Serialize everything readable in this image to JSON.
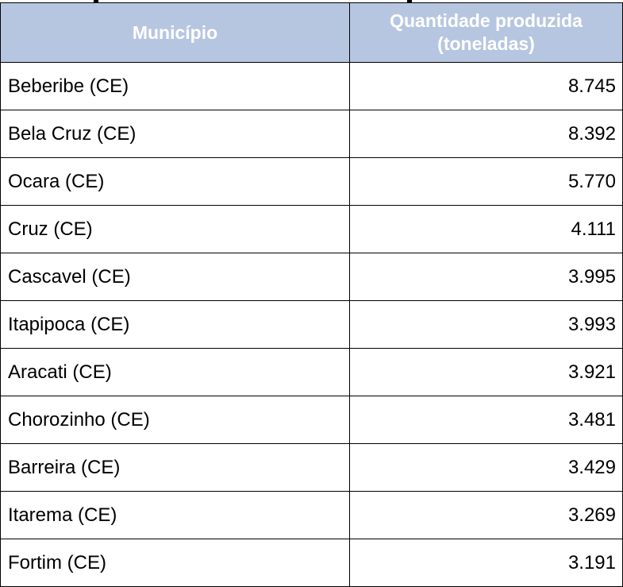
{
  "table": {
    "headers": {
      "municipio": "Município",
      "quantidade_line1": "Quantidade produzida",
      "quantidade_line2": "(toneladas)"
    },
    "rows": [
      {
        "municipio": "Beberibe (CE)",
        "quantidade": "8.745"
      },
      {
        "municipio": "Bela Cruz (CE)",
        "quantidade": "8.392"
      },
      {
        "municipio": "Ocara (CE)",
        "quantidade": "5.770"
      },
      {
        "municipio": "Cruz (CE)",
        "quantidade": "4.111"
      },
      {
        "municipio": "Cascavel (CE)",
        "quantidade": "3.995"
      },
      {
        "municipio": "Itapipoca (CE)",
        "quantidade": "3.993"
      },
      {
        "municipio": "Aracati (CE)",
        "quantidade": "3.921"
      },
      {
        "municipio": "Chorozinho (CE)",
        "quantidade": "3.481"
      },
      {
        "municipio": "Barreira (CE)",
        "quantidade": "3.429"
      },
      {
        "municipio": "Itarema (CE)",
        "quantidade": "3.269"
      },
      {
        "municipio": "Fortim (CE)",
        "quantidade": "3.191"
      }
    ]
  },
  "colors": {
    "header_background": "#b7c6e0",
    "header_text": "#ffffff",
    "border": "#000000"
  }
}
